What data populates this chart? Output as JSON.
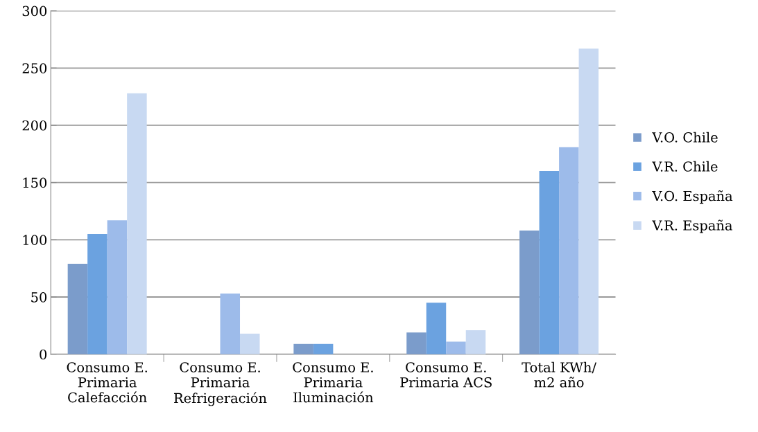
{
  "chart_data": {
    "type": "bar",
    "categories": [
      "Consumo E.\nPrimaria\nCalefacción",
      "Consumo E.\nPrimaria\nRefrigeración",
      "Consumo E.\nPrimaria\nIluminación",
      "Consumo E.\nPrimaria ACS",
      "Total KWh/\nm2 año"
    ],
    "series": [
      {
        "name": "V.O. Chile",
        "color": "#7b9ccb",
        "values": [
          79,
          0,
          9,
          19,
          108
        ]
      },
      {
        "name": "V.R. Chile",
        "color": "#6ba2e0",
        "values": [
          105,
          0,
          9,
          45,
          160
        ]
      },
      {
        "name": "V.O. España",
        "color": "#9dbbea",
        "values": [
          117,
          53,
          0,
          11,
          181
        ]
      },
      {
        "name": "V.R. España",
        "color": "#c8d9f2",
        "values": [
          228,
          18,
          0,
          21,
          267
        ]
      }
    ],
    "ylim": [
      0,
      300
    ],
    "yticks": [
      0,
      50,
      100,
      150,
      200,
      250,
      300
    ],
    "grid": "y",
    "legend": "right"
  }
}
